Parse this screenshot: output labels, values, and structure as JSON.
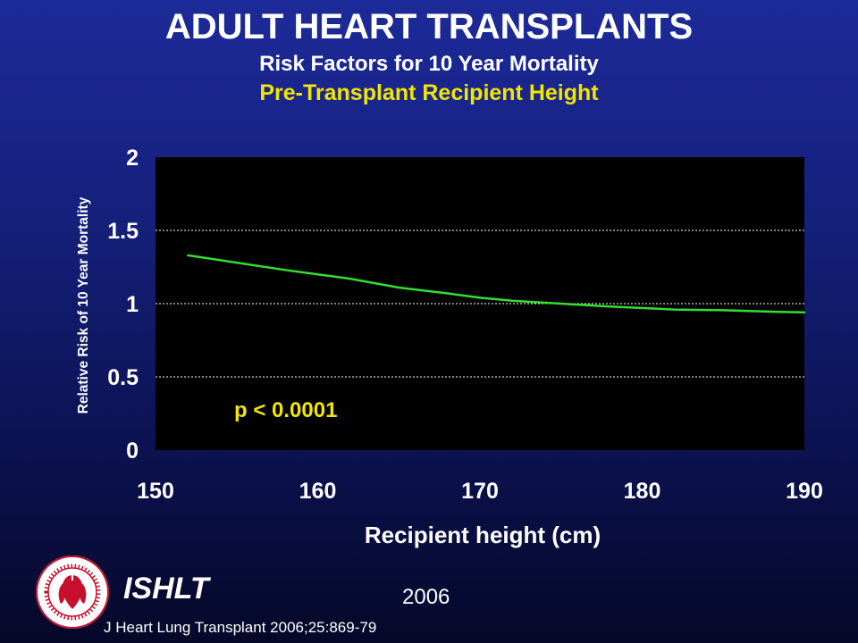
{
  "header": {
    "title": "ADULT HEART TRANSPLANTS",
    "subtitle": "Risk Factors for 10 Year Mortality",
    "subtitle2": "Pre-Transplant Recipient Height"
  },
  "colors": {
    "background_top": "#1d2a99",
    "background_bottom": "#050828",
    "plot_background": "#000000",
    "line": "#33dd33",
    "highlight_text": "#f2e600"
  },
  "chart_data": {
    "type": "line",
    "xlabel": "Recipient height (cm)",
    "ylabel": "Relative Risk of 10 Year Mortality",
    "xlim": [
      150,
      190
    ],
    "ylim": [
      0,
      2
    ],
    "x_ticks": [
      "150",
      "160",
      "170",
      "180",
      "190"
    ],
    "y_ticks": [
      "0",
      "0.5",
      "1",
      "1.5",
      "2"
    ],
    "grid": "horizontal dashed",
    "annotation": "p < 0.0001",
    "series": [
      {
        "x": [
          152,
          155,
          158,
          160,
          162,
          165,
          168,
          170,
          172,
          175,
          178,
          180,
          182,
          185,
          188,
          190
        ],
        "y": [
          1.33,
          1.28,
          1.23,
          1.2,
          1.17,
          1.11,
          1.07,
          1.04,
          1.02,
          1.0,
          0.98,
          0.97,
          0.96,
          0.955,
          0.945,
          0.94
        ]
      }
    ]
  },
  "footer": {
    "org": "ISHLT",
    "year": "2006",
    "citation": "J Heart Lung Transplant 2006;25:869-79",
    "logo_text": "INTERNATIONAL SOCIETY FOR HEART & LUNG TRANSPLANTATION",
    "logo_icon": "heart-lungs-seal"
  }
}
